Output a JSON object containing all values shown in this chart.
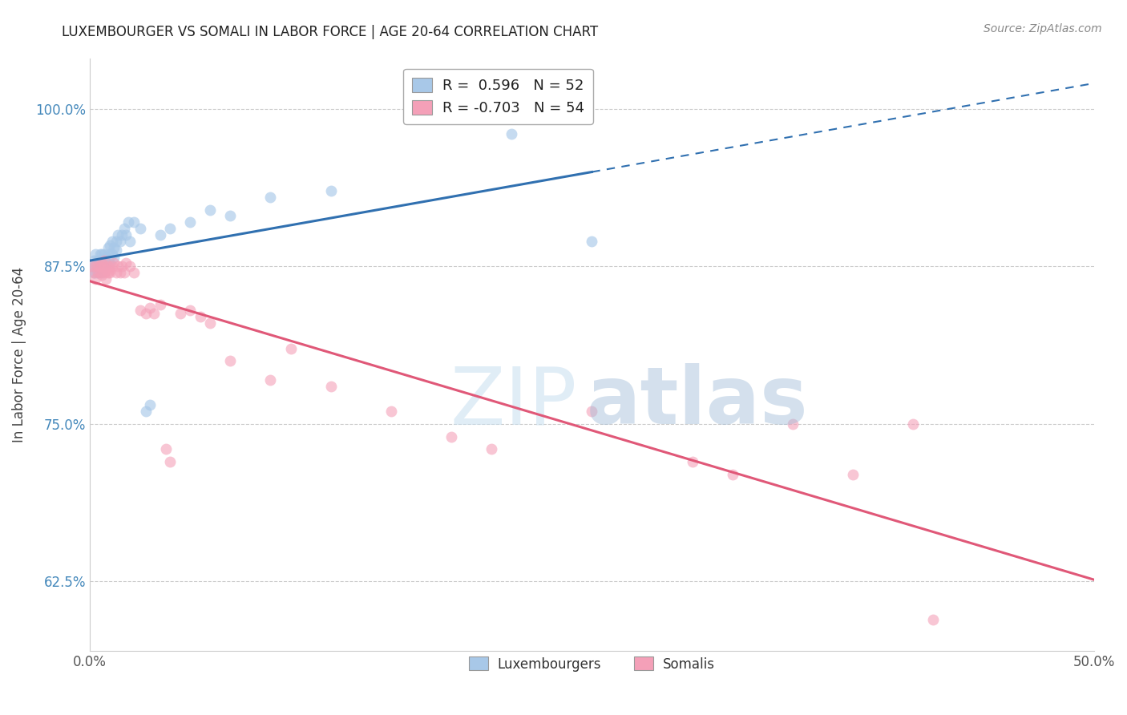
{
  "title": "LUXEMBOURGER VS SOMALI IN LABOR FORCE | AGE 20-64 CORRELATION CHART",
  "source_text": "Source: ZipAtlas.com",
  "ylabel": "In Labor Force | Age 20-64",
  "xlim": [
    0.0,
    0.5
  ],
  "ylim": [
    0.57,
    1.04
  ],
  "xticks": [
    0.0,
    0.1,
    0.2,
    0.3,
    0.4,
    0.5
  ],
  "yticks": [
    0.625,
    0.75,
    0.875,
    1.0
  ],
  "xticklabels": [
    "0.0%",
    "",
    "",
    "",
    "",
    "50.0%"
  ],
  "yticklabels": [
    "62.5%",
    "75.0%",
    "87.5%",
    "100.0%"
  ],
  "legend_r_blue": "0.596",
  "legend_n_blue": "52",
  "legend_r_pink": "-0.703",
  "legend_n_pink": "54",
  "blue_color": "#a8c8e8",
  "pink_color": "#f4a0b8",
  "blue_line_color": "#3070b0",
  "pink_line_color": "#e05878",
  "blue_scatter_x": [
    0.001,
    0.002,
    0.002,
    0.003,
    0.003,
    0.003,
    0.004,
    0.004,
    0.004,
    0.005,
    0.005,
    0.005,
    0.006,
    0.006,
    0.006,
    0.006,
    0.007,
    0.007,
    0.007,
    0.008,
    0.008,
    0.009,
    0.009,
    0.01,
    0.01,
    0.01,
    0.011,
    0.011,
    0.012,
    0.012,
    0.013,
    0.013,
    0.014,
    0.015,
    0.016,
    0.017,
    0.018,
    0.019,
    0.02,
    0.022,
    0.025,
    0.028,
    0.03,
    0.035,
    0.04,
    0.05,
    0.06,
    0.07,
    0.09,
    0.12,
    0.21,
    0.25
  ],
  "blue_scatter_y": [
    0.875,
    0.88,
    0.87,
    0.875,
    0.885,
    0.87,
    0.875,
    0.88,
    0.87,
    0.88,
    0.875,
    0.885,
    0.875,
    0.88,
    0.87,
    0.885,
    0.88,
    0.875,
    0.885,
    0.882,
    0.878,
    0.88,
    0.89,
    0.885,
    0.878,
    0.892,
    0.885,
    0.895,
    0.882,
    0.89,
    0.895,
    0.888,
    0.9,
    0.895,
    0.9,
    0.905,
    0.9,
    0.91,
    0.895,
    0.91,
    0.905,
    0.76,
    0.765,
    0.9,
    0.905,
    0.91,
    0.92,
    0.915,
    0.93,
    0.935,
    0.98,
    0.895
  ],
  "pink_scatter_x": [
    0.001,
    0.002,
    0.003,
    0.003,
    0.004,
    0.004,
    0.005,
    0.005,
    0.006,
    0.006,
    0.007,
    0.007,
    0.007,
    0.008,
    0.008,
    0.009,
    0.009,
    0.01,
    0.01,
    0.011,
    0.012,
    0.013,
    0.014,
    0.015,
    0.016,
    0.017,
    0.018,
    0.02,
    0.022,
    0.025,
    0.028,
    0.03,
    0.032,
    0.035,
    0.038,
    0.04,
    0.045,
    0.05,
    0.055,
    0.06,
    0.07,
    0.09,
    0.1,
    0.12,
    0.15,
    0.18,
    0.2,
    0.25,
    0.3,
    0.32,
    0.35,
    0.38,
    0.41,
    0.42
  ],
  "pink_scatter_y": [
    0.875,
    0.87,
    0.875,
    0.865,
    0.875,
    0.87,
    0.875,
    0.87,
    0.878,
    0.868,
    0.875,
    0.87,
    0.88,
    0.872,
    0.865,
    0.87,
    0.875,
    0.87,
    0.872,
    0.875,
    0.878,
    0.87,
    0.875,
    0.87,
    0.875,
    0.87,
    0.878,
    0.875,
    0.87,
    0.84,
    0.838,
    0.842,
    0.838,
    0.845,
    0.73,
    0.72,
    0.838,
    0.84,
    0.835,
    0.83,
    0.8,
    0.785,
    0.81,
    0.78,
    0.76,
    0.74,
    0.73,
    0.76,
    0.72,
    0.71,
    0.75,
    0.71,
    0.75,
    0.595
  ],
  "blue_line_x": [
    0.0,
    0.5
  ],
  "blue_line_solid_end": 0.25,
  "pink_line_x": [
    0.0,
    0.5
  ]
}
